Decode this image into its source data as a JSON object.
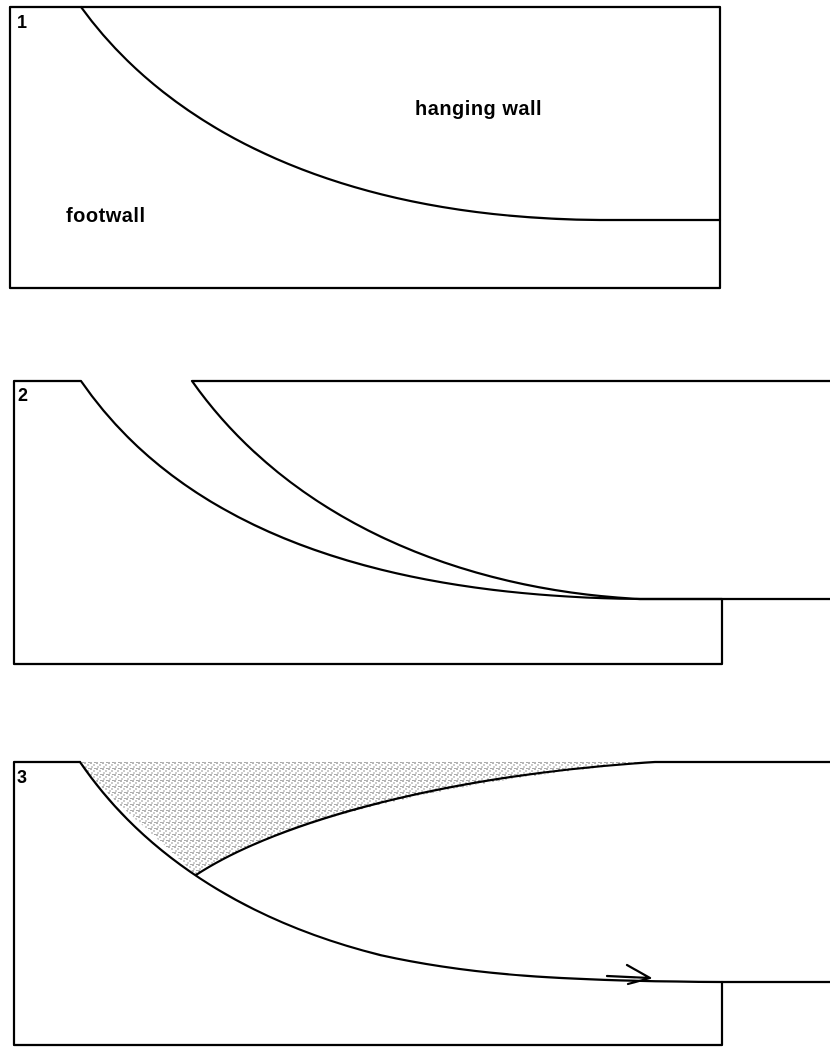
{
  "panels": [
    {
      "number": "1",
      "hanging_wall_label": "hanging wall",
      "footwall_label": "footwall"
    },
    {
      "number": "2"
    },
    {
      "number": "3"
    }
  ],
  "colors": {
    "line": "#000000",
    "background": "#ffffff",
    "fill_stipple": "#000000"
  }
}
